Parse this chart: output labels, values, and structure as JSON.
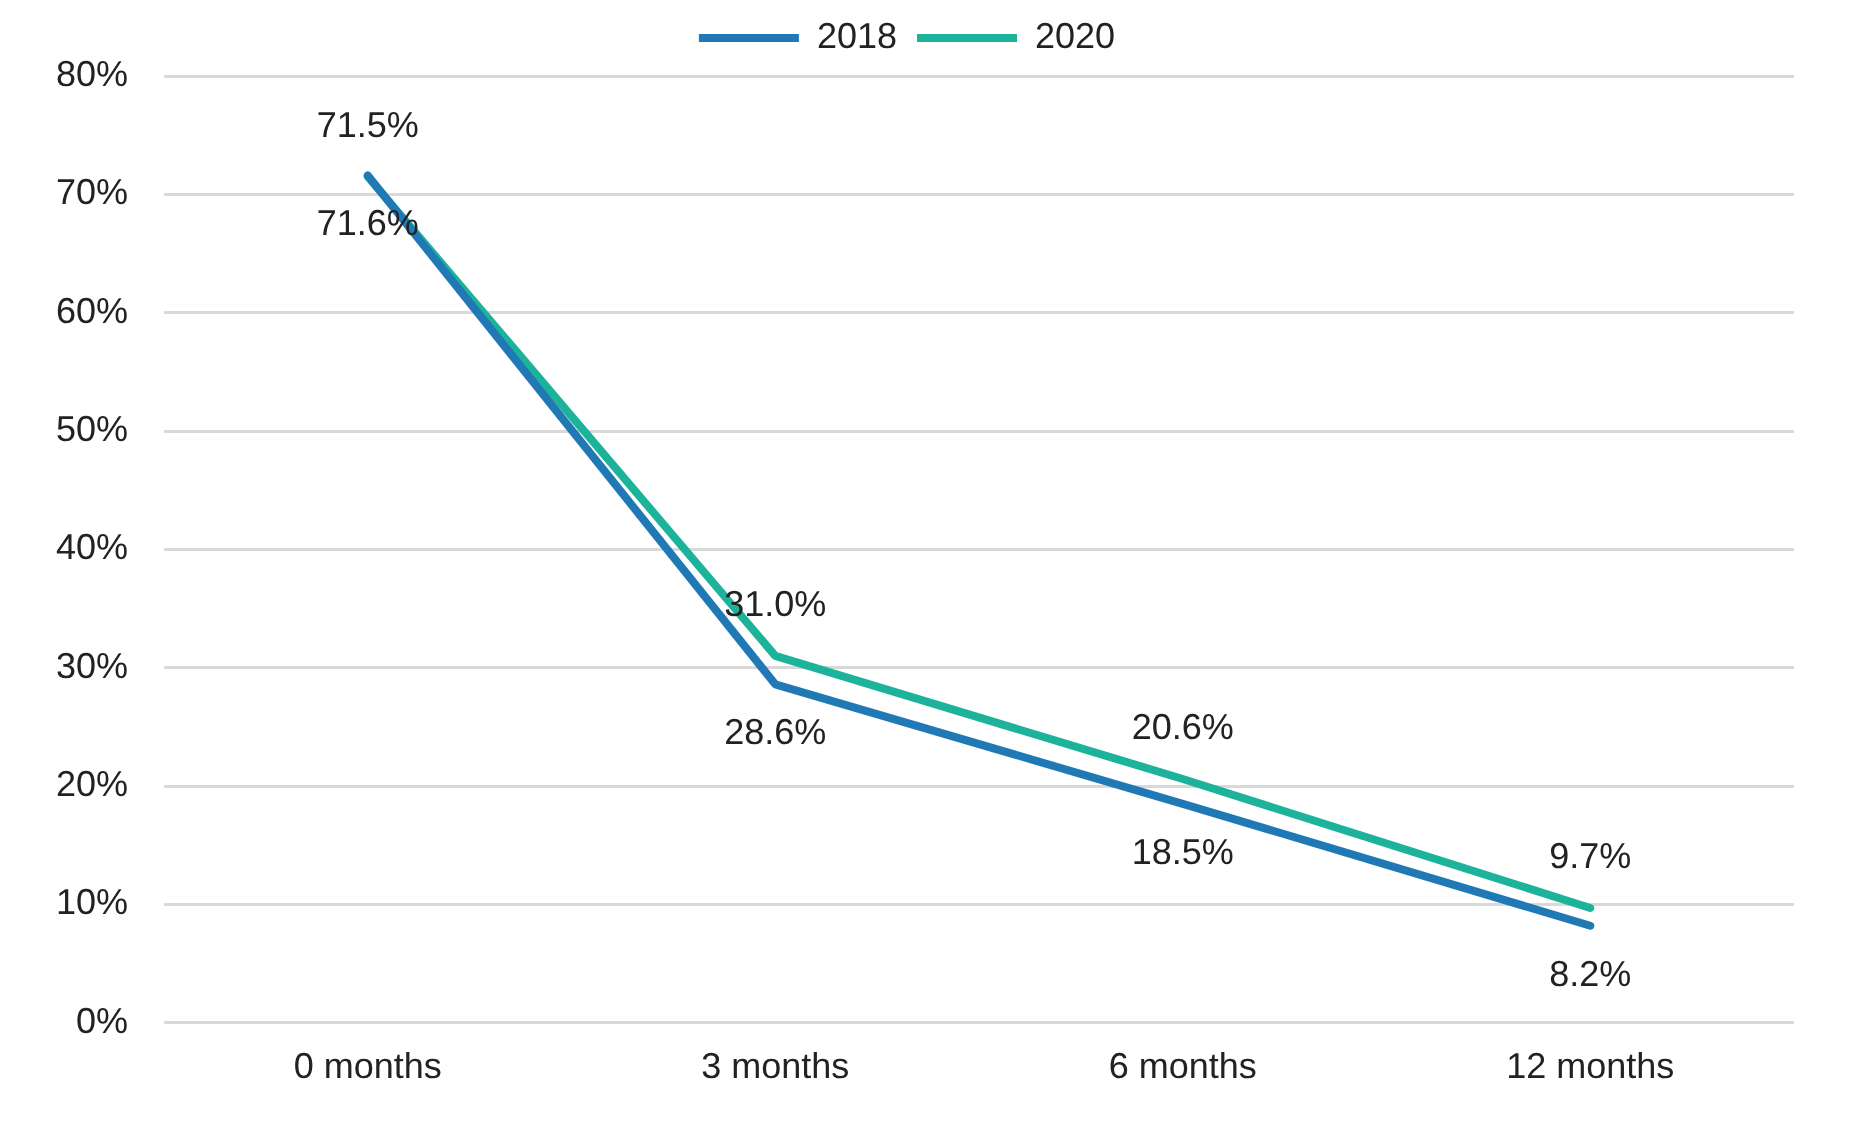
{
  "chart_data": {
    "type": "line",
    "categories": [
      "0 months",
      "3 months",
      "6 months",
      "12 months"
    ],
    "series": [
      {
        "name": "2018",
        "color": "#2079b4",
        "values": [
          71.6,
          28.6,
          18.5,
          8.2
        ],
        "value_labels": [
          "71.6%",
          "28.6%",
          "18.5%",
          "8.2%"
        ]
      },
      {
        "name": "2020",
        "color": "#1cb39a",
        "values": [
          71.5,
          31.0,
          20.6,
          9.7
        ],
        "value_labels": [
          "71.5%",
          "31.0%",
          "20.6%",
          "9.7%"
        ]
      }
    ],
    "ylim": [
      0,
      80
    ],
    "yticks": [
      {
        "value": 0,
        "label": "0%"
      },
      {
        "value": 10,
        "label": "10%"
      },
      {
        "value": 20,
        "label": "20%"
      },
      {
        "value": 30,
        "label": "30%"
      },
      {
        "value": 40,
        "label": "40%"
      },
      {
        "value": 50,
        "label": "50%"
      },
      {
        "value": 60,
        "label": "60%"
      },
      {
        "value": 70,
        "label": "70%"
      },
      {
        "value": 80,
        "label": "80%"
      }
    ],
    "grid": "y",
    "legend": "top",
    "marker": "none",
    "line_style": "solid"
  }
}
